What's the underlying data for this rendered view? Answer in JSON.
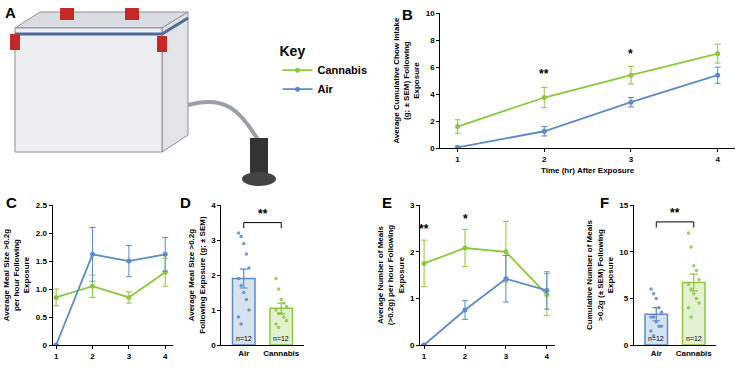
{
  "diagram": {
    "label": "A"
  },
  "key": {
    "title": "Key"
  },
  "chart_data": [
    {
      "label": "B",
      "type": "line",
      "xlabel": "Time (hr) After Exposure",
      "ylabel": "Average Cumulative Chow Intake\n(g; ± SEM) Following\nExposure",
      "x": [
        1,
        2,
        3,
        4
      ],
      "xlim": [
        0.8,
        4.2
      ],
      "xticks": [
        1,
        2,
        3,
        4
      ],
      "ylim": [
        0,
        10
      ],
      "yticks": [
        0,
        2,
        4,
        6,
        8,
        10
      ],
      "series": [
        {
          "name": "Cannabis",
          "color": "#8dc63f",
          "marker": "circle",
          "values": [
            1.6,
            3.75,
            5.4,
            7.0
          ],
          "errors": [
            0.5,
            0.75,
            0.65,
            0.7
          ]
        },
        {
          "name": "Air",
          "color": "#5b8bc9",
          "marker": "circle",
          "values": [
            0.05,
            1.25,
            3.4,
            5.4
          ],
          "errors": [
            0.1,
            0.35,
            0.35,
            0.6
          ]
        }
      ],
      "annotations": [
        {
          "x": 2,
          "y": 4.8,
          "text": "**"
        },
        {
          "x": 3,
          "y": 6.3,
          "text": "*"
        }
      ]
    },
    {
      "label": "C",
      "type": "line",
      "ylabel": "Average Meal Size >0.2g\nper hour Following\nExposure",
      "x": [
        1,
        2,
        3,
        4
      ],
      "xlim": [
        0.9,
        4.2
      ],
      "xticks": [
        1,
        2,
        3,
        4
      ],
      "ylim": [
        0,
        2.5
      ],
      "yticks": [
        0,
        0.5,
        {
          "value": 1,
          "label": "1.0"
        },
        1.5,
        {
          "value": 2,
          "label": "2.0"
        },
        2.5
      ],
      "series": [
        {
          "name": "Cannabis",
          "color": "#8dc63f",
          "marker": "circle",
          "values": [
            0.85,
            1.05,
            0.85,
            1.3
          ],
          "errors": [
            0.15,
            0.2,
            0.1,
            0.25
          ]
        },
        {
          "name": "Air",
          "color": "#5b8bc9",
          "marker": "circle",
          "values": [
            0,
            1.62,
            1.5,
            1.62
          ],
          "errors": [
            0,
            0.48,
            0.28,
            0.3
          ]
        }
      ]
    },
    {
      "label": "D",
      "type": "bar",
      "ylabel": "Average Meal Size >0.2g\nFollowing Exposure (g; ± SEM)",
      "categories": [
        "Air",
        "Cannabis"
      ],
      "values": [
        1.9,
        1.05
      ],
      "errors": [
        0.27,
        0.15
      ],
      "colors": [
        "#5b8bc9",
        "#8dc63f"
      ],
      "points": [
        [
          3.2,
          3.1,
          2.9,
          2.6,
          2.2,
          1.9,
          1.7,
          1.5,
          1.3,
          1.0,
          0.8,
          0.6
        ],
        [
          1.9,
          1.6,
          1.3,
          1.2,
          1.1,
          1.0,
          0.9,
          0.9,
          0.8,
          0.7,
          0.6,
          0.5
        ]
      ],
      "bar_labels": [
        "n=12",
        "n=12"
      ],
      "ylim": [
        0,
        4
      ],
      "yticks": [
        0,
        1,
        2,
        3,
        4
      ],
      "significance": {
        "text": "**",
        "y": 3.5
      }
    },
    {
      "label": "E",
      "type": "line",
      "ylabel": "Average Number of Meals\n(>0.2g) per hour Following\nExposure",
      "x": [
        1,
        2,
        3,
        4
      ],
      "xlim": [
        0.9,
        4.2
      ],
      "xticks": [
        1,
        2,
        3,
        4
      ],
      "ylim": [
        0,
        3
      ],
      "yticks": [
        0,
        1,
        2,
        3
      ],
      "series": [
        {
          "name": "Cannabis",
          "color": "#8dc63f",
          "marker": "circle",
          "values": [
            1.75,
            2.08,
            2.0,
            1.08
          ],
          "errors": [
            0.5,
            0.4,
            0.65,
            0.45
          ]
        },
        {
          "name": "Air",
          "color": "#5b8bc9",
          "marker": "circle",
          "values": [
            0,
            0.75,
            1.42,
            1.17
          ],
          "errors": [
            0,
            0.2,
            0.5,
            0.4
          ]
        }
      ],
      "annotations": [
        {
          "x": 1,
          "y": 2.3,
          "text": "**"
        },
        {
          "x": 2,
          "y": 2.5,
          "text": "*"
        }
      ]
    },
    {
      "label": "F",
      "type": "bar",
      "ylabel": "Cumulative Number of Meals\n>0.2g (± SEM) Following\nExposure",
      "categories": [
        "Air",
        "Cannabis"
      ],
      "values": [
        3.3,
        6.7
      ],
      "errors": [
        0.7,
        0.9
      ],
      "colors": [
        "#5b8bc9",
        "#8dc63f"
      ],
      "points": [
        [
          6.0,
          5.5,
          5.0,
          4.0,
          3.5,
          3.0,
          3.0,
          2.5,
          2.0,
          2.0,
          1.5,
          1.0
        ],
        [
          12.0,
          10.5,
          8.5,
          8.0,
          7.0,
          6.5,
          6.0,
          5.5,
          5.0,
          4.5,
          4.0,
          3.0
        ]
      ],
      "bar_labels": [
        "n=12",
        "n=12"
      ],
      "ylim": [
        0,
        15
      ],
      "yticks": [
        0,
        5,
        10,
        15
      ],
      "significance": {
        "text": "**",
        "y": 13.2
      }
    }
  ]
}
